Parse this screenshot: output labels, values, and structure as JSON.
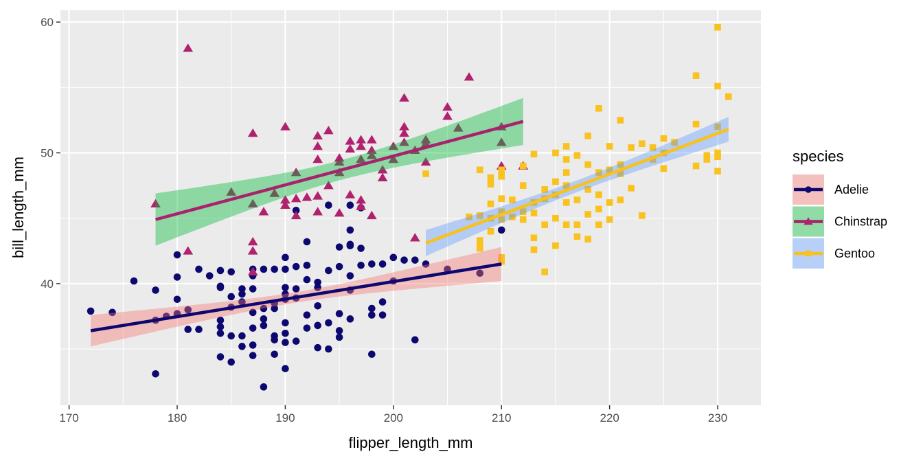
{
  "chart_data": {
    "type": "scatter",
    "xlabel": "flipper_length_mm",
    "ylabel": "bill_length_mm",
    "xlim": [
      169.2,
      234
    ],
    "ylim": [
      30.7,
      60.9
    ],
    "xticks": [
      170,
      180,
      190,
      200,
      210,
      220,
      230
    ],
    "yticks": [
      40,
      50,
      60
    ],
    "grid": true,
    "legend": {
      "title": "species",
      "placement": "right"
    },
    "series": [
      {
        "name": "Adelie",
        "marker": "circle",
        "point_color": "#0d0770",
        "line_color": "#0d0770",
        "ribbon_color": "#F8766D",
        "fit": {
          "x": [
            172,
            210
          ],
          "y": [
            36.4,
            41.5
          ]
        },
        "ribbon": {
          "x": [
            172,
            191,
            210
          ],
          "lower": [
            35.2,
            38.5,
            40.2
          ],
          "upper": [
            37.6,
            39.3,
            42.8
          ]
        },
        "points": [
          [
            172,
            37.9
          ],
          [
            174,
            37.8
          ],
          [
            176,
            40.2
          ],
          [
            178,
            39.5
          ],
          [
            178,
            37.2
          ],
          [
            178,
            33.1
          ],
          [
            179,
            37.5
          ],
          [
            180,
            42.2
          ],
          [
            180,
            40.5
          ],
          [
            180,
            38.8
          ],
          [
            180,
            37.7
          ],
          [
            181,
            36.5
          ],
          [
            181,
            38.0
          ],
          [
            182,
            41.1
          ],
          [
            182,
            36.5
          ],
          [
            183,
            40.6
          ],
          [
            184,
            41.0
          ],
          [
            184,
            39.8
          ],
          [
            184,
            39.7
          ],
          [
            184,
            37.2
          ],
          [
            184,
            36.7
          ],
          [
            184,
            36.2
          ],
          [
            184,
            34.4
          ],
          [
            185,
            40.9
          ],
          [
            185,
            39.0
          ],
          [
            185,
            38.2
          ],
          [
            185,
            36.0
          ],
          [
            185,
            34.0
          ],
          [
            186,
            39.6
          ],
          [
            186,
            39.2
          ],
          [
            186,
            38.6
          ],
          [
            186,
            36.0
          ],
          [
            186,
            35.2
          ],
          [
            187,
            41.1
          ],
          [
            187,
            40.6
          ],
          [
            187,
            39.6
          ],
          [
            187,
            37.8
          ],
          [
            187,
            36.6
          ],
          [
            187,
            35.3
          ],
          [
            187,
            34.5
          ],
          [
            188,
            41.1
          ],
          [
            188,
            38.1
          ],
          [
            188,
            37.3
          ],
          [
            188,
            36.8
          ],
          [
            188,
            32.1
          ],
          [
            189,
            41.1
          ],
          [
            189,
            38.5
          ],
          [
            189,
            38.1
          ],
          [
            189,
            34.6
          ],
          [
            189,
            36.0
          ],
          [
            189,
            35.7
          ],
          [
            190,
            42.0
          ],
          [
            190,
            41.1
          ],
          [
            190,
            39.7
          ],
          [
            190,
            39.2
          ],
          [
            190,
            38.8
          ],
          [
            190,
            37.0
          ],
          [
            190,
            36.2
          ],
          [
            190,
            35.5
          ],
          [
            190,
            33.5
          ],
          [
            191,
            41.3
          ],
          [
            191,
            39.6
          ],
          [
            191,
            38.9
          ],
          [
            191,
            35.6
          ],
          [
            191,
            45.6
          ],
          [
            192,
            43.2
          ],
          [
            192,
            41.4
          ],
          [
            192,
            40.3
          ],
          [
            192,
            37.6
          ],
          [
            192,
            36.6
          ],
          [
            193,
            39.7
          ],
          [
            193,
            40.1
          ],
          [
            193,
            38.3
          ],
          [
            193,
            36.8
          ],
          [
            193,
            35.1
          ],
          [
            194,
            41.0
          ],
          [
            194,
            37.0
          ],
          [
            194,
            35.0
          ],
          [
            195,
            42.8
          ],
          [
            195,
            41.3
          ],
          [
            195,
            37.7
          ],
          [
            195,
            36.4
          ],
          [
            195,
            35.9
          ],
          [
            196,
            44.1
          ],
          [
            196,
            43.0
          ],
          [
            196,
            42.9
          ],
          [
            196,
            40.6
          ],
          [
            196,
            39.5
          ],
          [
            196,
            37.3
          ],
          [
            197,
            42.7
          ],
          [
            197,
            41.4
          ],
          [
            197,
            45.8
          ],
          [
            198,
            41.5
          ],
          [
            198,
            38.1
          ],
          [
            198,
            37.6
          ],
          [
            198,
            34.6
          ],
          [
            199,
            41.5
          ],
          [
            199,
            38.6
          ],
          [
            199,
            37.6
          ],
          [
            200,
            42.0
          ],
          [
            200,
            40.2
          ],
          [
            201,
            41.8
          ],
          [
            202,
            41.8
          ],
          [
            202,
            35.7
          ],
          [
            203,
            41.5
          ],
          [
            205,
            41.1
          ],
          [
            208,
            40.8
          ],
          [
            210,
            44.1
          ],
          [
            194,
            46.0
          ],
          [
            196,
            46.0
          ]
        ]
      },
      {
        "name": "Chinstrap",
        "marker": "triangle",
        "point_color": "#b0226e",
        "line_color": "#a8226e",
        "ribbon_color": "#00BA38",
        "fit": {
          "x": [
            178,
            212
          ],
          "y": [
            44.9,
            52.4
          ]
        },
        "ribbon": {
          "x": [
            178,
            195,
            212
          ],
          "lower": [
            42.9,
            47.9,
            50.6
          ],
          "upper": [
            46.9,
            49.4,
            54.2
          ]
        },
        "points": [
          [
            178,
            46.1
          ],
          [
            181,
            58.0
          ],
          [
            181,
            42.5
          ],
          [
            185,
            47.0
          ],
          [
            187,
            51.5
          ],
          [
            187,
            46.1
          ],
          [
            187,
            43.2
          ],
          [
            187,
            42.5
          ],
          [
            187,
            40.9
          ],
          [
            188,
            45.5
          ],
          [
            189,
            46.9
          ],
          [
            190,
            52.0
          ],
          [
            190,
            46.4
          ],
          [
            190,
            46.0
          ],
          [
            191,
            48.5
          ],
          [
            191,
            46.5
          ],
          [
            191,
            45.2
          ],
          [
            192,
            46.6
          ],
          [
            193,
            51.3
          ],
          [
            193,
            50.5
          ],
          [
            193,
            46.7
          ],
          [
            193,
            45.5
          ],
          [
            194,
            51.7
          ],
          [
            194,
            47.5
          ],
          [
            195,
            49.3
          ],
          [
            195,
            49.6
          ],
          [
            195,
            48.5
          ],
          [
            195,
            45.4
          ],
          [
            196,
            50.9
          ],
          [
            196,
            50.3
          ],
          [
            196,
            46.8
          ],
          [
            197,
            51.0
          ],
          [
            197,
            50.5
          ],
          [
            197,
            49.5
          ],
          [
            197,
            46.4
          ],
          [
            197,
            45.9
          ],
          [
            198,
            50.2
          ],
          [
            198,
            49.8
          ],
          [
            198,
            45.2
          ],
          [
            199,
            48.1
          ],
          [
            199,
            48.7
          ],
          [
            200,
            50.5
          ],
          [
            200,
            49.5
          ],
          [
            201,
            54.2
          ],
          [
            201,
            52.0
          ],
          [
            201,
            50.8
          ],
          [
            201,
            51.5
          ],
          [
            202,
            50.2
          ],
          [
            202,
            43.5
          ],
          [
            203,
            51.0
          ],
          [
            203,
            50.7
          ],
          [
            203,
            49.3
          ],
          [
            205,
            53.5
          ],
          [
            205,
            52.8
          ],
          [
            206,
            51.9
          ],
          [
            207,
            55.8
          ],
          [
            210,
            52.0
          ],
          [
            210,
            50.8
          ],
          [
            210,
            49.0
          ],
          [
            212,
            49.0
          ],
          [
            198,
            51.0
          ],
          [
            193,
            49.5
          ]
        ]
      },
      {
        "name": "Gentoo",
        "marker": "square",
        "point_color": "#f9c21e",
        "line_color": "#f7c21b",
        "ribbon_color": "#619CFF",
        "fit": {
          "x": [
            203,
            231
          ],
          "y": [
            43.1,
            51.8
          ]
        },
        "ribbon": {
          "x": [
            203,
            217,
            231
          ],
          "lower": [
            42.0,
            47.0,
            50.8
          ],
          "upper": [
            44.0,
            47.9,
            52.7
          ]
        },
        "points": [
          [
            203,
            48.4
          ],
          [
            207,
            45.1
          ],
          [
            208,
            48.7
          ],
          [
            208,
            45.2
          ],
          [
            208,
            43.3
          ],
          [
            208,
            42.7
          ],
          [
            208,
            42.8
          ],
          [
            209,
            47.6
          ],
          [
            209,
            48.1
          ],
          [
            209,
            46.1
          ],
          [
            209,
            45.0
          ],
          [
            209,
            44.0
          ],
          [
            210,
            48.7
          ],
          [
            210,
            48.2
          ],
          [
            210,
            46.5
          ],
          [
            210,
            45.5
          ],
          [
            210,
            44.9
          ],
          [
            210,
            42.0
          ],
          [
            210,
            41.7
          ],
          [
            211,
            46.4
          ],
          [
            211,
            45.1
          ],
          [
            212,
            49.0
          ],
          [
            212,
            47.5
          ],
          [
            212,
            45.5
          ],
          [
            212,
            44.9
          ],
          [
            213,
            49.9
          ],
          [
            213,
            46.2
          ],
          [
            213,
            45.4
          ],
          [
            213,
            43.5
          ],
          [
            213,
            42.6
          ],
          [
            214,
            47.2
          ],
          [
            214,
            46.5
          ],
          [
            214,
            44.5
          ],
          [
            214,
            40.9
          ],
          [
            215,
            50.0
          ],
          [
            215,
            47.8
          ],
          [
            215,
            46.8
          ],
          [
            215,
            45.0
          ],
          [
            215,
            42.9
          ],
          [
            216,
            50.5
          ],
          [
            216,
            49.5
          ],
          [
            216,
            48.5
          ],
          [
            216,
            47.5
          ],
          [
            216,
            46.2
          ],
          [
            216,
            44.5
          ],
          [
            217,
            49.8
          ],
          [
            217,
            46.4
          ],
          [
            217,
            44.5
          ],
          [
            217,
            43.6
          ],
          [
            218,
            51.3
          ],
          [
            218,
            49.1
          ],
          [
            218,
            47.2
          ],
          [
            218,
            45.3
          ],
          [
            218,
            43.4
          ],
          [
            219,
            53.4
          ],
          [
            219,
            48.5
          ],
          [
            219,
            46.8
          ],
          [
            219,
            45.7
          ],
          [
            219,
            44.5
          ],
          [
            220,
            50.5
          ],
          [
            220,
            48.7
          ],
          [
            220,
            46.2
          ],
          [
            220,
            44.9
          ],
          [
            221,
            52.5
          ],
          [
            221,
            49.1
          ],
          [
            221,
            48.4
          ],
          [
            221,
            46.4
          ],
          [
            222,
            50.4
          ],
          [
            222,
            47.3
          ],
          [
            223,
            50.7
          ],
          [
            223,
            45.2
          ],
          [
            224,
            50.4
          ],
          [
            224,
            49.5
          ],
          [
            225,
            51.1
          ],
          [
            225,
            50.0
          ],
          [
            225,
            48.8
          ],
          [
            226,
            50.8
          ],
          [
            228,
            55.9
          ],
          [
            228,
            52.2
          ],
          [
            228,
            49.0
          ],
          [
            229,
            49.8
          ],
          [
            229,
            49.5
          ],
          [
            230,
            59.6
          ],
          [
            230,
            55.1
          ],
          [
            230,
            52.0
          ],
          [
            230,
            50.0
          ],
          [
            230,
            49.7
          ],
          [
            230,
            48.6
          ],
          [
            231,
            54.3
          ]
        ]
      }
    ]
  }
}
